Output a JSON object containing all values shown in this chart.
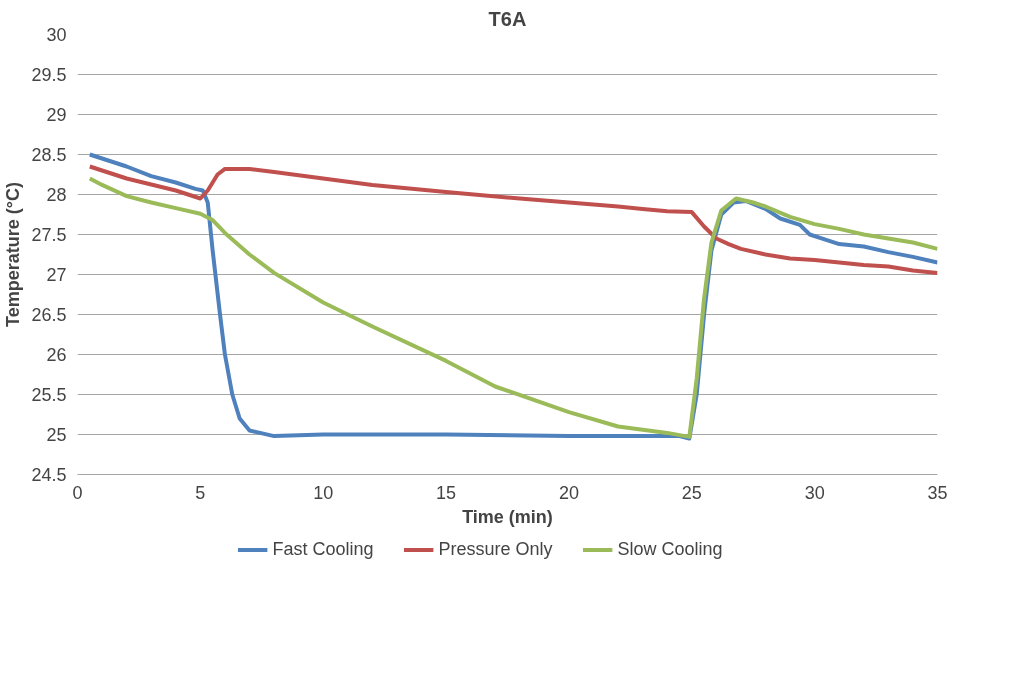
{
  "chart_data": {
    "type": "line",
    "title": "T6A",
    "xlabel": "Time (min)",
    "ylabel": "Temperature (°C)",
    "xlim": [
      0,
      35
    ],
    "xticks": [
      0,
      5,
      10,
      15,
      20,
      25,
      30,
      35
    ],
    "ylim": [
      24.5,
      30
    ],
    "yticks": [
      24.5,
      25,
      25.5,
      26,
      26.5,
      27,
      27.5,
      28,
      28.5,
      29,
      29.5,
      30
    ],
    "grid": "y",
    "legend": "bottom",
    "marker": "none",
    "line_style": "solid",
    "series": [
      {
        "name": "Fast Cooling",
        "color": "#4f81bd",
        "x": [
          0.5,
          1,
          2,
          3,
          4,
          4.8,
          5.1,
          5.3,
          5.5,
          5.8,
          6,
          6.3,
          6.6,
          7,
          8,
          10,
          15,
          20,
          24.5,
          24.9,
          25.2,
          25.5,
          25.8,
          26.2,
          26.7,
          27.2,
          28,
          28.6,
          29.4,
          29.8,
          30.5,
          31,
          32,
          33,
          34,
          35
        ],
        "values": [
          28.5,
          28.45,
          28.35,
          28.23,
          28.15,
          28.07,
          28.05,
          27.9,
          27.3,
          26.5,
          26.0,
          25.5,
          25.2,
          25.05,
          24.98,
          25.0,
          25.0,
          24.98,
          24.98,
          24.95,
          25.5,
          26.5,
          27.3,
          27.75,
          27.9,
          27.92,
          27.82,
          27.7,
          27.62,
          27.5,
          27.43,
          27.38,
          27.35,
          27.28,
          27.22,
          27.15
        ]
      },
      {
        "name": "Pressure Only",
        "color": "#c0504d",
        "x": [
          0.5,
          2,
          4,
          5,
          5.3,
          5.7,
          6,
          7,
          8,
          10,
          12,
          15,
          18,
          20,
          22,
          23,
          24,
          25,
          25.5,
          26,
          26.5,
          27,
          28,
          29,
          30,
          31,
          32,
          33,
          34,
          35
        ],
        "values": [
          28.35,
          28.2,
          28.05,
          27.95,
          28.05,
          28.25,
          28.32,
          28.32,
          28.28,
          28.2,
          28.12,
          28.03,
          27.95,
          27.9,
          27.85,
          27.82,
          27.79,
          27.78,
          27.6,
          27.45,
          27.38,
          27.32,
          27.25,
          27.2,
          27.18,
          27.15,
          27.12,
          27.1,
          27.05,
          27.02
        ]
      },
      {
        "name": "Slow Cooling",
        "color": "#9bbb59",
        "x": [
          0.5,
          1,
          2,
          3,
          4,
          5,
          5.5,
          6,
          7,
          8,
          10,
          12,
          15,
          17,
          20,
          22,
          24,
          24.9,
          25.2,
          25.5,
          25.8,
          26.2,
          26.8,
          27.5,
          28,
          29,
          30,
          31,
          32,
          33,
          34,
          35
        ],
        "values": [
          28.2,
          28.12,
          27.98,
          27.9,
          27.83,
          27.76,
          27.68,
          27.52,
          27.25,
          27.02,
          26.65,
          26.35,
          25.92,
          25.6,
          25.28,
          25.1,
          25.02,
          24.97,
          25.7,
          26.7,
          27.4,
          27.8,
          27.95,
          27.9,
          27.85,
          27.72,
          27.63,
          27.57,
          27.5,
          27.45,
          27.4,
          27.32
        ]
      }
    ]
  }
}
